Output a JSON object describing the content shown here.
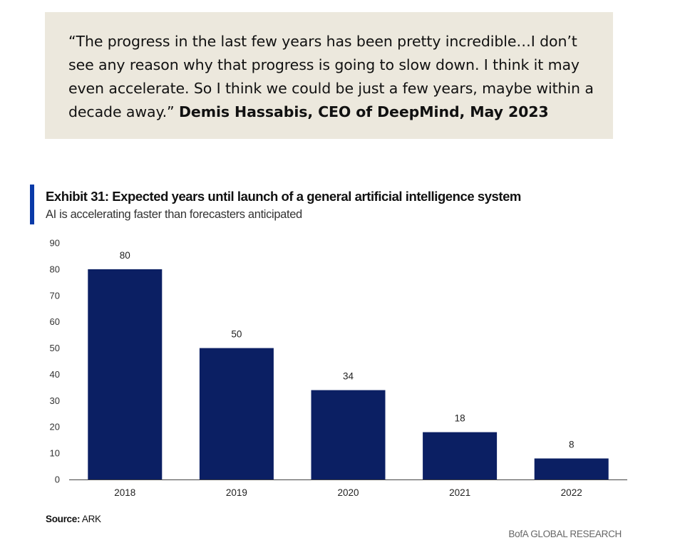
{
  "quote": {
    "text": "“The progress in the last few years has been pretty incredible…I don’t see any reason why that progress is going to slow down. I think it may even accelerate. So I think we could be just a few years, maybe within a decade away.”",
    "attribution": "Demis Hassabis, CEO of DeepMind, May 2023"
  },
  "exhibit": {
    "title": "Exhibit 31: Expected years until launch of a general artificial intelligence system",
    "subtitle": "AI is accelerating faster than forecasters anticipated"
  },
  "chart_data": {
    "type": "bar",
    "title": "Exhibit 31: Expected years until launch of a general artificial intelligence system",
    "subtitle": "AI is accelerating faster than forecasters anticipated",
    "categories": [
      "2018",
      "2019",
      "2020",
      "2021",
      "2022"
    ],
    "values": [
      80,
      50,
      34,
      18,
      8
    ],
    "xlabel": "",
    "ylabel": "",
    "ylim": [
      0,
      90
    ],
    "yticks": [
      0,
      10,
      20,
      30,
      40,
      50,
      60,
      70,
      80,
      90
    ],
    "grid": false,
    "bar_color": "#0b1f63",
    "data_labels": true
  },
  "source": {
    "label": "Source:",
    "value": "ARK"
  },
  "footer": {
    "brand": "BofA GLOBAL RESEARCH"
  },
  "colors": {
    "accent": "#0a3aa8",
    "bar": "#0b1f63",
    "quote_bg": "#ece8dd"
  }
}
